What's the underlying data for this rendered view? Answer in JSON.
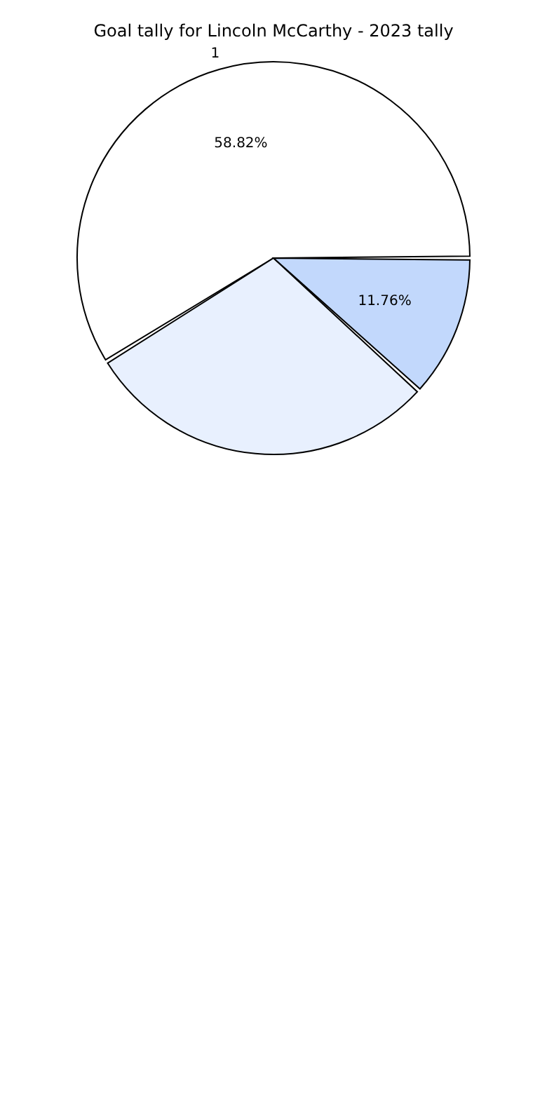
{
  "chart_data": {
    "type": "pie",
    "title": "Goal tally for Lincoln McCarthy - 2023 tally",
    "categories": [
      "1",
      null,
      null
    ],
    "values": [
      58.82,
      29.41,
      11.76
    ],
    "colors": [
      "#ffffff",
      "#e8f0fe",
      "#c2d8fc"
    ],
    "value_labels": [
      "58.82%",
      null,
      "11.76%"
    ],
    "legend": false
  }
}
